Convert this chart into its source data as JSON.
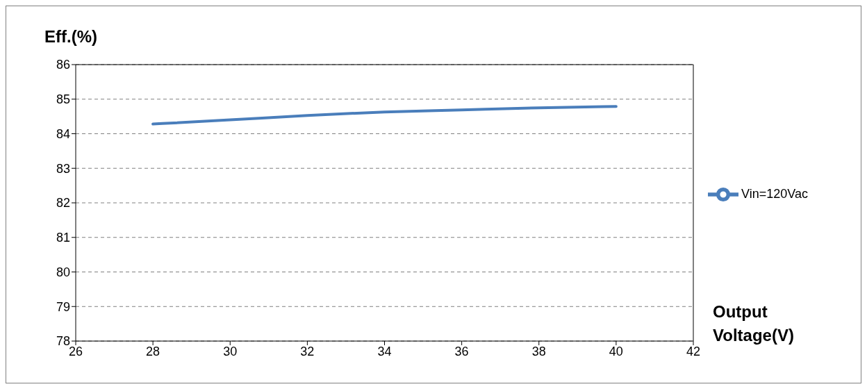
{
  "chart_data": {
    "type": "line",
    "ylabel": "Eff.(%)",
    "xlabel": "Output Voltage(V)",
    "x": [
      28,
      30,
      32,
      34,
      36,
      38,
      40
    ],
    "series": [
      {
        "name": "Vin=120Vac",
        "color": "#4a7ebb",
        "values": [
          84.28,
          84.4,
          84.53,
          84.63,
          84.69,
          84.75,
          84.79
        ]
      }
    ],
    "xlim": [
      26,
      42
    ],
    "xticks": [
      26,
      28,
      30,
      32,
      34,
      36,
      38,
      40,
      42
    ],
    "ylim": [
      78,
      86
    ],
    "yticks": [
      78,
      79,
      80,
      81,
      82,
      83,
      84,
      85,
      86
    ],
    "grid": "y",
    "legend": "right",
    "marker": "none",
    "line_style": "solid"
  }
}
